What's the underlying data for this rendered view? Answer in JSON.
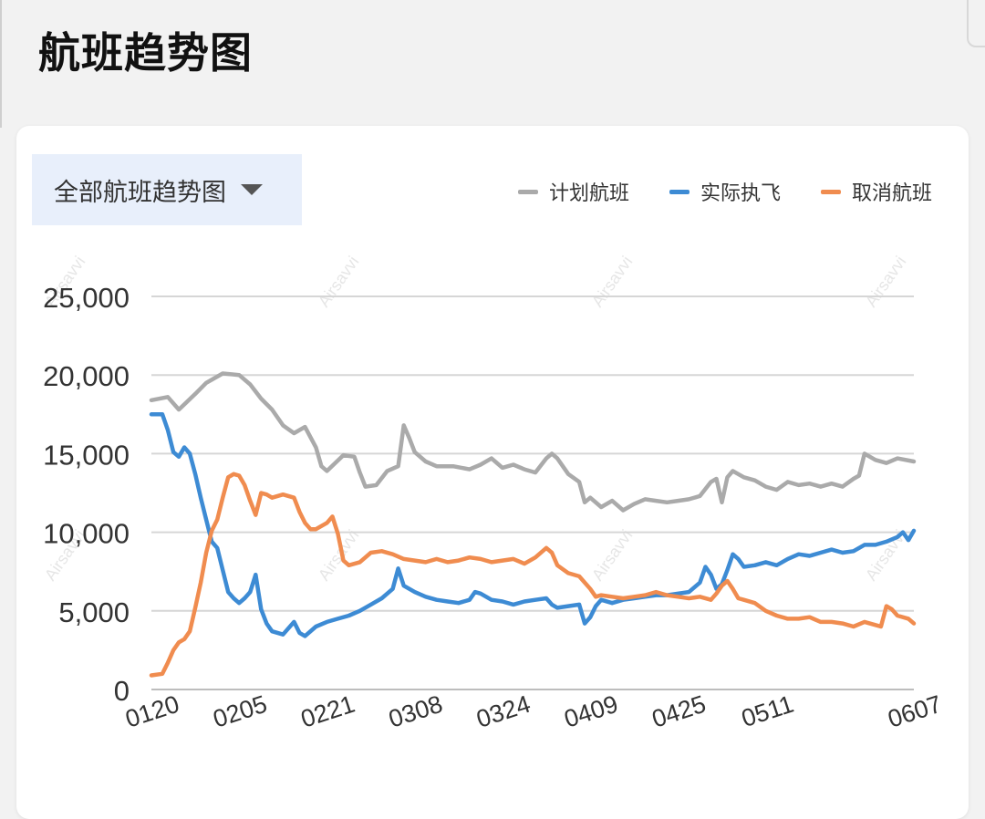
{
  "page": {
    "title": "航班趋势图"
  },
  "dropdown": {
    "label": "全部航班趋势图"
  },
  "watermark": "Airsavvi",
  "colors": {
    "planned": "#aaaaaa",
    "actual": "#3d8bd4",
    "cancelled": "#f08c4f"
  },
  "chart_data": {
    "type": "line",
    "title": "",
    "xlabel": "",
    "ylabel": "",
    "ylim": [
      0,
      25000
    ],
    "yticks": [
      0,
      5000,
      10000,
      15000,
      20000,
      25000
    ],
    "ytick_labels": [
      "0",
      "5,000",
      "10,000",
      "15,000",
      "20,000",
      "25,000"
    ],
    "xtick_labels": [
      "0120",
      "0205",
      "0221",
      "0308",
      "0324",
      "0409",
      "0425",
      "0511",
      "0607"
    ],
    "xtick_index": [
      0,
      16,
      32,
      48,
      64,
      80,
      96,
      112,
      139
    ],
    "x_count": 140,
    "grid": true,
    "legend_position": "top-right",
    "series": [
      {
        "name": "计划航班",
        "color": "#aaaaaa",
        "points": [
          [
            0,
            18400
          ],
          [
            3,
            18600
          ],
          [
            5,
            17800
          ],
          [
            8,
            18800
          ],
          [
            10,
            19500
          ],
          [
            13,
            20100
          ],
          [
            16,
            20000
          ],
          [
            18,
            19400
          ],
          [
            20,
            18500
          ],
          [
            22,
            17800
          ],
          [
            24,
            16800
          ],
          [
            26,
            16300
          ],
          [
            28,
            16700
          ],
          [
            30,
            15400
          ],
          [
            31,
            14200
          ],
          [
            32,
            13900
          ],
          [
            35,
            14900
          ],
          [
            37,
            14800
          ],
          [
            38,
            13800
          ],
          [
            39,
            12900
          ],
          [
            41,
            13000
          ],
          [
            43,
            13900
          ],
          [
            45,
            14200
          ],
          [
            46,
            16800
          ],
          [
            47,
            16000
          ],
          [
            48,
            15100
          ],
          [
            50,
            14500
          ],
          [
            52,
            14200
          ],
          [
            55,
            14200
          ],
          [
            58,
            14000
          ],
          [
            60,
            14300
          ],
          [
            62,
            14700
          ],
          [
            64,
            14100
          ],
          [
            66,
            14300
          ],
          [
            68,
            14000
          ],
          [
            70,
            13800
          ],
          [
            72,
            14700
          ],
          [
            73,
            15000
          ],
          [
            74,
            14700
          ],
          [
            76,
            13700
          ],
          [
            78,
            13200
          ],
          [
            79,
            11900
          ],
          [
            80,
            12200
          ],
          [
            82,
            11600
          ],
          [
            84,
            12000
          ],
          [
            86,
            11400
          ],
          [
            88,
            11800
          ],
          [
            90,
            12100
          ],
          [
            92,
            12000
          ],
          [
            94,
            11900
          ],
          [
            96,
            12000
          ],
          [
            98,
            12100
          ],
          [
            100,
            12300
          ],
          [
            102,
            13200
          ],
          [
            103,
            13400
          ],
          [
            104,
            11900
          ],
          [
            105,
            13500
          ],
          [
            106,
            13900
          ],
          [
            108,
            13500
          ],
          [
            110,
            13300
          ],
          [
            112,
            12900
          ],
          [
            114,
            12700
          ],
          [
            116,
            13200
          ],
          [
            118,
            13000
          ],
          [
            120,
            13100
          ],
          [
            122,
            12900
          ],
          [
            124,
            13100
          ],
          [
            126,
            12900
          ],
          [
            128,
            13400
          ],
          [
            129,
            13600
          ],
          [
            130,
            15000
          ],
          [
            132,
            14600
          ],
          [
            134,
            14400
          ],
          [
            136,
            14700
          ],
          [
            139,
            14500
          ]
        ]
      },
      {
        "name": "实际执飞",
        "color": "#3d8bd4",
        "points": [
          [
            0,
            17500
          ],
          [
            2,
            17500
          ],
          [
            3,
            16500
          ],
          [
            4,
            15100
          ],
          [
            5,
            14800
          ],
          [
            6,
            15400
          ],
          [
            7,
            15000
          ],
          [
            8,
            13700
          ],
          [
            9,
            12200
          ],
          [
            10,
            10800
          ],
          [
            11,
            9400
          ],
          [
            12,
            9000
          ],
          [
            13,
            7600
          ],
          [
            14,
            6200
          ],
          [
            15,
            5800
          ],
          [
            16,
            5500
          ],
          [
            17,
            5800
          ],
          [
            18,
            6200
          ],
          [
            19,
            7300
          ],
          [
            20,
            5100
          ],
          [
            21,
            4200
          ],
          [
            22,
            3700
          ],
          [
            24,
            3500
          ],
          [
            26,
            4300
          ],
          [
            27,
            3600
          ],
          [
            28,
            3400
          ],
          [
            30,
            4000
          ],
          [
            32,
            4300
          ],
          [
            34,
            4500
          ],
          [
            36,
            4700
          ],
          [
            38,
            5000
          ],
          [
            40,
            5400
          ],
          [
            42,
            5800
          ],
          [
            44,
            6400
          ],
          [
            45,
            7700
          ],
          [
            46,
            6600
          ],
          [
            48,
            6200
          ],
          [
            50,
            5900
          ],
          [
            52,
            5700
          ],
          [
            54,
            5600
          ],
          [
            56,
            5500
          ],
          [
            58,
            5700
          ],
          [
            59,
            6200
          ],
          [
            60,
            6100
          ],
          [
            62,
            5700
          ],
          [
            64,
            5600
          ],
          [
            66,
            5400
          ],
          [
            68,
            5600
          ],
          [
            70,
            5700
          ],
          [
            72,
            5800
          ],
          [
            73,
            5400
          ],
          [
            74,
            5200
          ],
          [
            76,
            5300
          ],
          [
            78,
            5400
          ],
          [
            79,
            4200
          ],
          [
            80,
            4600
          ],
          [
            81,
            5300
          ],
          [
            82,
            5700
          ],
          [
            84,
            5500
          ],
          [
            86,
            5700
          ],
          [
            88,
            5800
          ],
          [
            90,
            5900
          ],
          [
            92,
            6000
          ],
          [
            94,
            6000
          ],
          [
            96,
            6100
          ],
          [
            98,
            6200
          ],
          [
            100,
            6800
          ],
          [
            101,
            7800
          ],
          [
            102,
            7300
          ],
          [
            103,
            6400
          ],
          [
            104,
            6700
          ],
          [
            105,
            7600
          ],
          [
            106,
            8600
          ],
          [
            107,
            8300
          ],
          [
            108,
            7800
          ],
          [
            110,
            7900
          ],
          [
            112,
            8100
          ],
          [
            114,
            7900
          ],
          [
            116,
            8300
          ],
          [
            118,
            8600
          ],
          [
            120,
            8500
          ],
          [
            122,
            8700
          ],
          [
            124,
            8900
          ],
          [
            126,
            8700
          ],
          [
            128,
            8800
          ],
          [
            130,
            9200
          ],
          [
            132,
            9200
          ],
          [
            134,
            9400
          ],
          [
            136,
            9700
          ],
          [
            137,
            10000
          ],
          [
            138,
            9500
          ],
          [
            139,
            10100
          ]
        ]
      },
      {
        "name": "取消航班",
        "color": "#f08c4f",
        "points": [
          [
            0,
            900
          ],
          [
            2,
            1000
          ],
          [
            3,
            1700
          ],
          [
            4,
            2500
          ],
          [
            5,
            3000
          ],
          [
            6,
            3200
          ],
          [
            7,
            3700
          ],
          [
            8,
            5200
          ],
          [
            9,
            6800
          ],
          [
            10,
            8700
          ],
          [
            11,
            10100
          ],
          [
            12,
            10800
          ],
          [
            13,
            12200
          ],
          [
            14,
            13500
          ],
          [
            15,
            13700
          ],
          [
            16,
            13600
          ],
          [
            17,
            13000
          ],
          [
            18,
            12000
          ],
          [
            19,
            11100
          ],
          [
            20,
            12500
          ],
          [
            21,
            12400
          ],
          [
            22,
            12200
          ],
          [
            24,
            12400
          ],
          [
            26,
            12200
          ],
          [
            27,
            11300
          ],
          [
            28,
            10600
          ],
          [
            29,
            10200
          ],
          [
            30,
            10200
          ],
          [
            32,
            10600
          ],
          [
            33,
            11000
          ],
          [
            34,
            9900
          ],
          [
            35,
            8200
          ],
          [
            36,
            7900
          ],
          [
            38,
            8100
          ],
          [
            40,
            8700
          ],
          [
            42,
            8800
          ],
          [
            44,
            8600
          ],
          [
            46,
            8300
          ],
          [
            48,
            8200
          ],
          [
            50,
            8100
          ],
          [
            52,
            8300
          ],
          [
            54,
            8100
          ],
          [
            56,
            8200
          ],
          [
            58,
            8400
          ],
          [
            60,
            8300
          ],
          [
            62,
            8100
          ],
          [
            64,
            8200
          ],
          [
            66,
            8300
          ],
          [
            68,
            8000
          ],
          [
            70,
            8400
          ],
          [
            72,
            9000
          ],
          [
            73,
            8700
          ],
          [
            74,
            7900
          ],
          [
            76,
            7400
          ],
          [
            78,
            7200
          ],
          [
            80,
            6400
          ],
          [
            81,
            5900
          ],
          [
            82,
            6000
          ],
          [
            84,
            5900
          ],
          [
            86,
            5800
          ],
          [
            88,
            5900
          ],
          [
            90,
            6000
          ],
          [
            92,
            6200
          ],
          [
            94,
            6000
          ],
          [
            96,
            5900
          ],
          [
            98,
            5800
          ],
          [
            100,
            5900
          ],
          [
            102,
            5700
          ],
          [
            103,
            6100
          ],
          [
            104,
            6600
          ],
          [
            105,
            6900
          ],
          [
            106,
            6400
          ],
          [
            107,
            5800
          ],
          [
            108,
            5700
          ],
          [
            110,
            5500
          ],
          [
            112,
            5000
          ],
          [
            114,
            4700
          ],
          [
            116,
            4500
          ],
          [
            118,
            4500
          ],
          [
            120,
            4600
          ],
          [
            122,
            4300
          ],
          [
            124,
            4300
          ],
          [
            126,
            4200
          ],
          [
            128,
            4000
          ],
          [
            130,
            4300
          ],
          [
            132,
            4100
          ],
          [
            133,
            4000
          ],
          [
            134,
            5300
          ],
          [
            135,
            5100
          ],
          [
            136,
            4700
          ],
          [
            138,
            4500
          ],
          [
            139,
            4200
          ]
        ]
      }
    ]
  }
}
